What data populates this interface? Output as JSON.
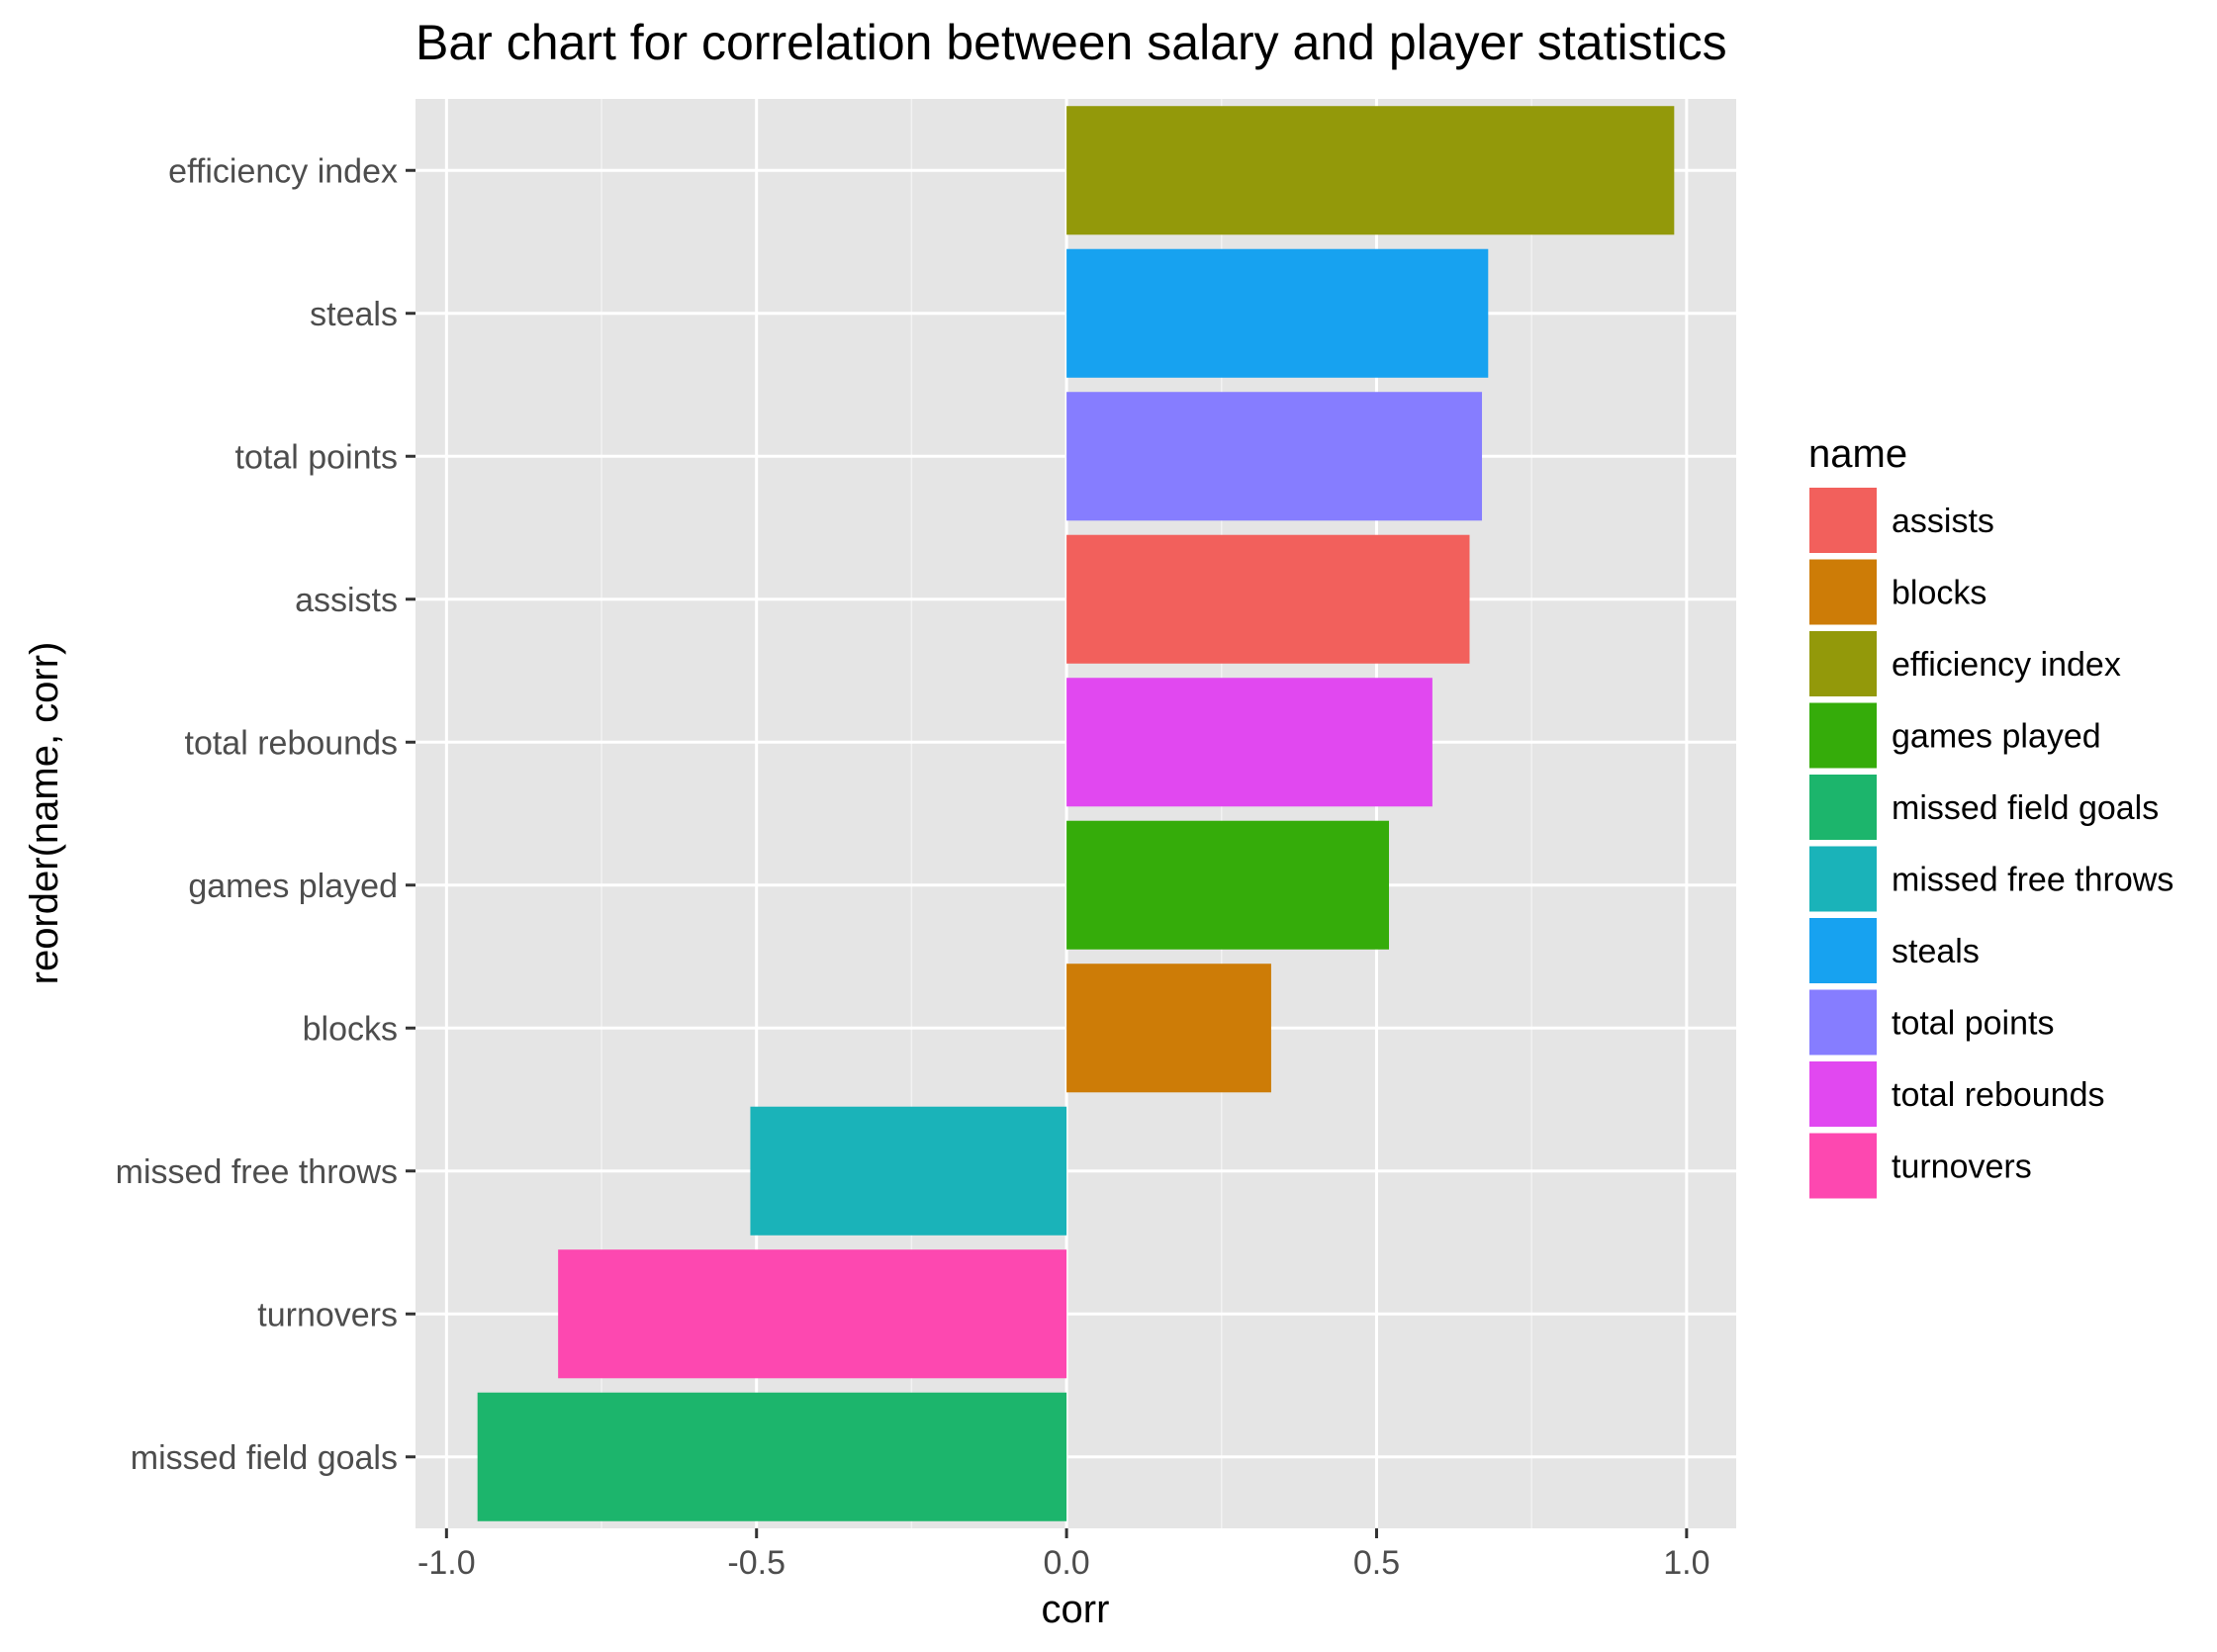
{
  "chart_data": {
    "type": "bar",
    "orientation": "horizontal",
    "title": "Bar chart for correlation between salary and player statistics",
    "xlabel": "corr",
    "ylabel": "reorder(name, corr)",
    "xlim": [
      -1.05,
      1.08
    ],
    "x_ticks": [
      -1.0,
      -0.5,
      0.0,
      0.5,
      1.0
    ],
    "x_tick_labels": [
      "-1.0",
      "-0.5",
      "0.0",
      "0.5",
      "1.0"
    ],
    "grid": true,
    "panel_background": "#e5e5e5",
    "categories": [
      "efficiency index",
      "steals",
      "total points",
      "assists",
      "total rebounds",
      "games played",
      "blocks",
      "missed free throws",
      "turnovers",
      "missed field goals"
    ],
    "values": [
      0.98,
      0.68,
      0.67,
      0.65,
      0.59,
      0.52,
      0.33,
      -0.51,
      -0.82,
      -0.95
    ],
    "bar_colors": [
      "#93990a",
      "#17a2f0",
      "#867dff",
      "#f2605c",
      "#e148f0",
      "#35ac0a",
      "#cd7c07",
      "#1ab3b9",
      "#fd48b0",
      "#1cb56c"
    ],
    "legend": {
      "title": "name",
      "position": "right",
      "entries": [
        {
          "label": "assists",
          "color": "#f2605c"
        },
        {
          "label": "blocks",
          "color": "#cd7c07"
        },
        {
          "label": "efficiency index",
          "color": "#93990a"
        },
        {
          "label": "games played",
          "color": "#35ac0a"
        },
        {
          "label": "missed field goals",
          "color": "#1cb56c"
        },
        {
          "label": "missed free throws",
          "color": "#1ab3b9"
        },
        {
          "label": "steals",
          "color": "#17a2f0"
        },
        {
          "label": "total points",
          "color": "#867dff"
        },
        {
          "label": "total rebounds",
          "color": "#e148f0"
        },
        {
          "label": "turnovers",
          "color": "#fd48b0"
        }
      ]
    }
  }
}
